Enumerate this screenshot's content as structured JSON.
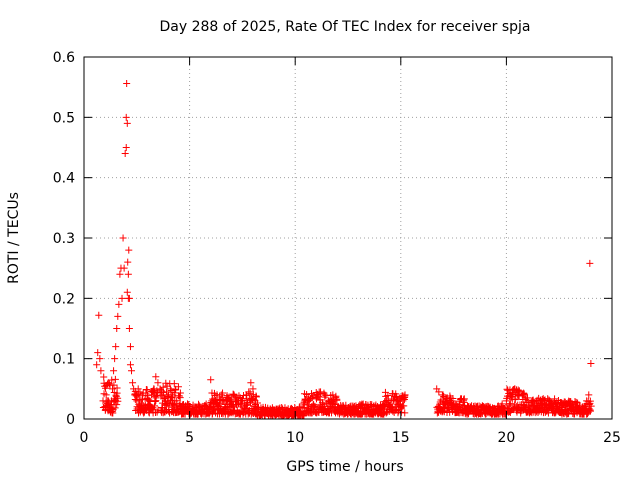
{
  "chart_data": {
    "type": "scatter",
    "title": "Day 288 of 2025, Rate Of TEC Index for receiver spja",
    "xlabel": "GPS time / hours",
    "ylabel": "ROTI / TECUs",
    "xlim": [
      0,
      25
    ],
    "ylim": [
      0,
      0.6
    ],
    "xticks": [
      0,
      5,
      10,
      15,
      20,
      25
    ],
    "yticks": [
      0,
      0.1,
      0.2,
      0.3,
      0.4,
      0.5,
      0.6
    ],
    "xtick_labels": [
      "0",
      "5",
      "10",
      "15",
      "20",
      "25"
    ],
    "ytick_labels": [
      "0",
      "0.1",
      "0.2",
      "0.3",
      "0.4",
      "0.5",
      "0.6"
    ],
    "grid": true,
    "marker": "+",
    "color": "#ff0000",
    "series": [
      {
        "name": "ROTI",
        "x": [
          0.6,
          0.65,
          0.7,
          0.75,
          0.8,
          0.9,
          1.0,
          1.05,
          1.1,
          1.15,
          1.2,
          1.25,
          1.3,
          1.35,
          1.4,
          1.45,
          1.5,
          1.55,
          1.6,
          1.65,
          1.7,
          1.75,
          1.8,
          1.85,
          1.9,
          1.95,
          2.0,
          2.0,
          2.02,
          2.05,
          2.05,
          2.07,
          2.1,
          2.1,
          2.12,
          2.15,
          2.15,
          2.2,
          2.2,
          2.25,
          2.3,
          2.35,
          2.4,
          2.5,
          2.6,
          2.7,
          2.8,
          2.9,
          3.0,
          3.1,
          3.2,
          3.3,
          3.4,
          3.5,
          3.6,
          3.7,
          3.8,
          3.85,
          3.9,
          4.0,
          4.1,
          4.2,
          4.3,
          4.4,
          4.5,
          4.6,
          4.7,
          4.8,
          4.9,
          5.0,
          5.2,
          5.4,
          5.6,
          5.8,
          6.0,
          6.05,
          6.1,
          6.2,
          6.3,
          6.4,
          6.5,
          6.6,
          6.7,
          6.8,
          6.9,
          7.0,
          7.1,
          7.2,
          7.3,
          7.4,
          7.5,
          7.6,
          7.7,
          7.8,
          7.9,
          8.0,
          8.1,
          8.2,
          8.4,
          8.6,
          8.8,
          9.0,
          9.2,
          9.4,
          9.6,
          9.8,
          10.0,
          10.2,
          10.4,
          10.6,
          10.8,
          11.0,
          11.2,
          11.4,
          11.6,
          11.8,
          12.0,
          12.2,
          12.4,
          12.6,
          12.8,
          13.0,
          13.2,
          13.4,
          13.6,
          13.8,
          14.0,
          14.2,
          14.4,
          14.6,
          14.8,
          15.0,
          15.1,
          15.2,
          16.7,
          16.8,
          17.0,
          17.2,
          17.4,
          17.6,
          17.8,
          18.0,
          18.2,
          18.4,
          18.6,
          18.8,
          19.0,
          19.2,
          19.4,
          19.6,
          19.8,
          20.0,
          20.2,
          20.4,
          20.6,
          20.8,
          21.0,
          21.2,
          21.4,
          21.6,
          21.8,
          22.0,
          22.2,
          22.4,
          22.6,
          22.8,
          23.0,
          23.2,
          23.4,
          23.6,
          23.8,
          23.9,
          23.95,
          24.0
        ],
        "y": [
          0.09,
          0.11,
          0.172,
          0.1,
          0.08,
          0.03,
          0.02,
          0.04,
          0.03,
          0.06,
          0.02,
          0.015,
          0.03,
          0.05,
          0.08,
          0.1,
          0.12,
          0.15,
          0.17,
          0.19,
          0.24,
          0.25,
          0.2,
          0.3,
          0.25,
          0.44,
          0.45,
          0.5,
          0.556,
          0.49,
          0.21,
          0.26,
          0.2,
          0.24,
          0.28,
          0.2,
          0.15,
          0.12,
          0.09,
          0.08,
          0.06,
          0.05,
          0.04,
          0.03,
          0.02,
          0.015,
          0.012,
          0.015,
          0.02,
          0.03,
          0.04,
          0.05,
          0.07,
          0.06,
          0.05,
          0.04,
          0.035,
          0.03,
          0.025,
          0.04,
          0.05,
          0.04,
          0.03,
          0.025,
          0.02,
          0.018,
          0.015,
          0.02,
          0.025,
          0.02,
          0.015,
          0.012,
          0.015,
          0.02,
          0.065,
          0.03,
          0.02,
          0.03,
          0.025,
          0.02,
          0.04,
          0.03,
          0.02,
          0.035,
          0.025,
          0.03,
          0.04,
          0.03,
          0.025,
          0.035,
          0.03,
          0.02,
          0.04,
          0.045,
          0.06,
          0.05,
          0.03,
          0.015,
          0.012,
          0.01,
          0.012,
          0.015,
          0.01,
          0.012,
          0.015,
          0.01,
          0.012,
          0.02,
          0.025,
          0.03,
          0.035,
          0.04,
          0.045,
          0.04,
          0.03,
          0.025,
          0.02,
          0.018,
          0.015,
          0.012,
          0.015,
          0.02,
          0.018,
          0.015,
          0.012,
          0.01,
          0.015,
          0.02,
          0.025,
          0.02,
          0.015,
          0.02,
          0.03,
          0.04,
          0.05,
          0.045,
          0.04,
          0.035,
          0.03,
          0.025,
          0.02,
          0.018,
          0.02,
          0.015,
          0.012,
          0.015,
          0.02,
          0.018,
          0.015,
          0.02,
          0.025,
          0.03,
          0.04,
          0.05,
          0.045,
          0.04,
          0.035,
          0.03,
          0.025,
          0.03,
          0.02,
          0.025,
          0.02,
          0.018,
          0.015,
          0.02,
          0.015,
          0.012,
          0.018,
          0.02,
          0.03,
          0.04,
          0.258,
          0.092
        ],
        "dense_bands": [
          {
            "x_from": 0.9,
            "x_to": 1.6,
            "y_from": 0.01,
            "y_to": 0.07
          },
          {
            "x_from": 2.4,
            "x_to": 3.5,
            "y_from": 0.01,
            "y_to": 0.05
          },
          {
            "x_from": 3.6,
            "x_to": 4.6,
            "y_from": 0.01,
            "y_to": 0.06
          },
          {
            "x_from": 4.6,
            "x_to": 6.0,
            "y_from": 0.008,
            "y_to": 0.025
          },
          {
            "x_from": 6.0,
            "x_to": 8.2,
            "y_from": 0.008,
            "y_to": 0.045
          },
          {
            "x_from": 8.2,
            "x_to": 10.4,
            "y_from": 0.005,
            "y_to": 0.02
          },
          {
            "x_from": 10.4,
            "x_to": 12.0,
            "y_from": 0.01,
            "y_to": 0.045
          },
          {
            "x_from": 12.0,
            "x_to": 14.2,
            "y_from": 0.008,
            "y_to": 0.025
          },
          {
            "x_from": 14.2,
            "x_to": 15.2,
            "y_from": 0.01,
            "y_to": 0.045
          },
          {
            "x_from": 16.7,
            "x_to": 18.0,
            "y_from": 0.01,
            "y_to": 0.04
          },
          {
            "x_from": 18.0,
            "x_to": 20.0,
            "y_from": 0.008,
            "y_to": 0.022
          },
          {
            "x_from": 20.0,
            "x_to": 21.0,
            "y_from": 0.01,
            "y_to": 0.05
          },
          {
            "x_from": 21.0,
            "x_to": 22.5,
            "y_from": 0.01,
            "y_to": 0.035
          },
          {
            "x_from": 22.5,
            "x_to": 24.0,
            "y_from": 0.008,
            "y_to": 0.03
          }
        ]
      }
    ]
  }
}
